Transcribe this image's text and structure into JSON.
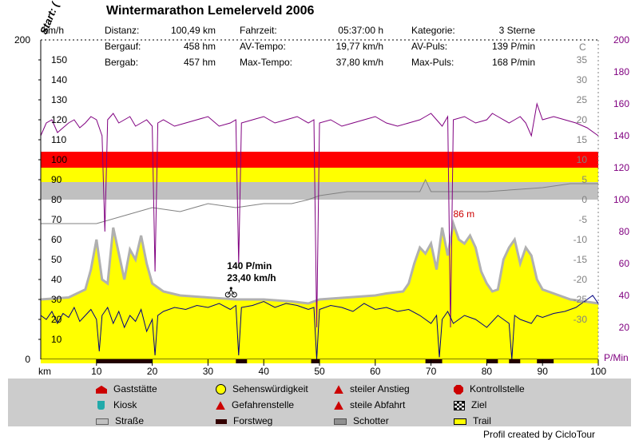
{
  "title": "Wintermarathon Lemelerveld 2006",
  "stats": [
    {
      "label": "Distanz:",
      "value": "100,49 km"
    },
    {
      "label": "Bergauf:",
      "value": "458 hm"
    },
    {
      "label": "Bergab:",
      "value": "457 hm"
    },
    {
      "label": "Fahrzeit:",
      "value": "05:37:00 h"
    },
    {
      "label": "AV-Tempo:",
      "value": "19,77 km/h"
    },
    {
      "label": "Max-Tempo:",
      "value": "37,80 km/h"
    },
    {
      "label": "Kategorie:",
      "value": "3 Sterne"
    },
    {
      "label": "AV-Puls:",
      "value": "139 P/min"
    },
    {
      "label": "Max-Puls:",
      "value": "168 P/min"
    }
  ],
  "chart_data": {
    "type": "line",
    "xlabel": "km",
    "xlim": [
      0,
      100
    ],
    "x_ticks": [
      10,
      20,
      30,
      40,
      50,
      60,
      70,
      80,
      90,
      100
    ],
    "start_label": "Start: (",
    "axes": {
      "speed": {
        "unit": "km/h",
        "top_label": "200",
        "bottom_label": "0",
        "ticks": [
          10,
          20,
          30,
          40,
          50,
          60,
          70,
          80,
          90,
          100,
          110,
          120,
          130,
          140,
          150
        ],
        "ylim": [
          0,
          160
        ]
      },
      "temperature": {
        "unit": "C",
        "ticks": [
          -30,
          -25,
          -20,
          -15,
          -10,
          -5,
          0,
          5,
          10,
          15,
          20,
          25,
          30,
          35
        ],
        "ylim": [
          -40,
          40
        ]
      },
      "pulse": {
        "unit": "P/Min",
        "ticks": [
          20,
          40,
          60,
          80,
          100,
          120,
          140,
          160,
          180,
          200
        ],
        "ylim": [
          0,
          200
        ]
      }
    },
    "pulse_zones": [
      {
        "from": 130,
        "to": 120,
        "color": "#ff0000"
      },
      {
        "from": 120,
        "to": 111,
        "color": "#ffff00"
      },
      {
        "from": 111,
        "to": 100,
        "color": "#c0c0c0"
      }
    ],
    "annotations": [
      {
        "text": "140 P/min",
        "x": 37
      },
      {
        "text": "23,40 km/h",
        "x": 37
      },
      {
        "text": "86 m",
        "x": 76
      }
    ],
    "series": [
      {
        "name": "elevation",
        "color": "#ffff00",
        "edge": "#b0b0b0",
        "x": [
          0,
          5,
          8,
          9,
          10,
          11,
          12,
          13,
          15,
          16,
          17,
          18,
          19,
          20,
          22,
          25,
          30,
          35,
          40,
          45,
          48,
          50,
          55,
          60,
          62,
          65,
          66,
          67,
          68,
          69,
          70,
          71,
          72,
          73,
          74,
          75,
          76,
          77,
          78,
          79,
          80,
          81,
          82,
          83,
          84,
          85,
          86,
          87,
          88,
          89,
          90,
          92,
          95,
          100
        ],
        "y": [
          30,
          31,
          35,
          45,
          60,
          40,
          38,
          66,
          40,
          55,
          50,
          62,
          48,
          38,
          34,
          32,
          31,
          30,
          30,
          29,
          28,
          30,
          31,
          32,
          33,
          34,
          38,
          48,
          56,
          53,
          58,
          45,
          66,
          52,
          68,
          60,
          58,
          62,
          56,
          44,
          38,
          34,
          35,
          50,
          56,
          60,
          48,
          56,
          52,
          40,
          35,
          33,
          30,
          28
        ]
      },
      {
        "name": "pulse",
        "color": "#800080",
        "x": [
          0,
          1,
          2,
          3,
          4,
          5,
          6,
          7,
          8,
          9,
          10,
          11,
          11.5,
          12,
          13,
          14,
          15,
          16,
          17,
          18,
          19,
          20,
          20.5,
          21,
          22,
          24,
          26,
          28,
          30,
          32,
          34,
          35,
          35.5,
          36,
          38,
          40,
          42,
          44,
          46,
          48,
          49,
          49.5,
          50,
          52,
          54,
          56,
          58,
          60,
          62,
          64,
          66,
          68,
          69,
          70,
          71,
          72,
          73,
          73.5,
          74,
          76,
          78,
          80,
          81,
          82,
          84,
          85,
          86,
          87,
          88,
          89,
          90,
          92,
          94,
          96,
          98,
          100
        ],
        "y": [
          140,
          148,
          150,
          142,
          145,
          148,
          150,
          145,
          148,
          152,
          150,
          140,
          80,
          150,
          154,
          148,
          150,
          152,
          146,
          148,
          150,
          146,
          55,
          148,
          150,
          146,
          148,
          150,
          152,
          146,
          148,
          150,
          60,
          148,
          150,
          152,
          148,
          150,
          152,
          148,
          150,
          20,
          148,
          150,
          146,
          148,
          150,
          152,
          148,
          146,
          148,
          150,
          152,
          154,
          150,
          146,
          152,
          20,
          150,
          152,
          148,
          150,
          154,
          152,
          148,
          150,
          152,
          148,
          140,
          160,
          150,
          152,
          150,
          148,
          145,
          140
        ]
      },
      {
        "name": "speed",
        "color": "#000080",
        "x": [
          0,
          1,
          2,
          3,
          4,
          5,
          6,
          7,
          8,
          9,
          10,
          10.5,
          11,
          12,
          13,
          14,
          15,
          16,
          17,
          18,
          19,
          20,
          20.5,
          21,
          22,
          24,
          26,
          28,
          30,
          32,
          34,
          35,
          35.5,
          36,
          38,
          40,
          42,
          44,
          46,
          48,
          49,
          49.5,
          50,
          52,
          54,
          56,
          58,
          60,
          62,
          64,
          66,
          68,
          69,
          70,
          71,
          71.5,
          72,
          73,
          74,
          76,
          78,
          80,
          82,
          84,
          84.5,
          85,
          86,
          88,
          89,
          90,
          92,
          94,
          96,
          98,
          99,
          100
        ],
        "y": [
          22,
          20,
          24,
          18,
          23,
          21,
          26,
          19,
          22,
          25,
          20,
          4,
          22,
          26,
          18,
          24,
          16,
          22,
          19,
          25,
          14,
          20,
          2,
          22,
          24,
          26,
          25,
          27,
          26,
          28,
          25,
          27,
          2,
          26,
          27,
          29,
          26,
          28,
          27,
          25,
          26,
          0,
          25,
          27,
          26,
          24,
          28,
          25,
          26,
          24,
          25,
          22,
          20,
          18,
          22,
          1,
          20,
          24,
          18,
          22,
          20,
          16,
          22,
          18,
          0,
          22,
          20,
          18,
          22,
          21,
          23,
          24,
          26,
          30,
          32,
          28
        ]
      },
      {
        "name": "temperature",
        "color": "#808080",
        "x": [
          0,
          3,
          10,
          15,
          20,
          25,
          30,
          35,
          40,
          45,
          48,
          50,
          55,
          60,
          65,
          68,
          69,
          70,
          80,
          90,
          95,
          100
        ],
        "y": [
          -6,
          -6,
          -6,
          -4,
          -2,
          -3,
          -1,
          -2,
          -1,
          -1,
          0,
          1,
          2,
          2,
          2,
          2,
          5,
          2,
          2,
          3,
          4,
          4
        ]
      }
    ]
  },
  "legend": [
    {
      "label": "Gaststätte",
      "icon": "house-icon",
      "color": "#cc0000"
    },
    {
      "label": "Kiosk",
      "icon": "cup-icon",
      "color": "#22aaaa"
    },
    {
      "label": "Straße",
      "icon": "road-icon",
      "color": "#c0c0c0"
    },
    {
      "label": "Sehenswürdigkeit",
      "icon": "smiley-icon",
      "color": "#ffff00"
    },
    {
      "label": "Gefahrenstelle",
      "icon": "warning-icon",
      "color": "#cc0000"
    },
    {
      "label": "Forstweg",
      "icon": "forest-path-icon",
      "color": "#330000"
    },
    {
      "label": "steiler Anstieg",
      "icon": "climb-sign-icon",
      "color": "#cc0000"
    },
    {
      "label": "steile Abfahrt",
      "icon": "descent-sign-icon",
      "color": "#cc0000"
    },
    {
      "label": "Schotter",
      "icon": "gravel-icon",
      "color": "#909090"
    },
    {
      "label": "Kontrollstelle",
      "icon": "stop-sign-icon",
      "color": "#cc0000"
    },
    {
      "label": "Ziel",
      "icon": "finish-flag-icon",
      "color": "#000000"
    },
    {
      "label": "Trail",
      "icon": "trail-icon",
      "color": "#ffff00"
    }
  ],
  "credit": "Profil created by CicloTour"
}
